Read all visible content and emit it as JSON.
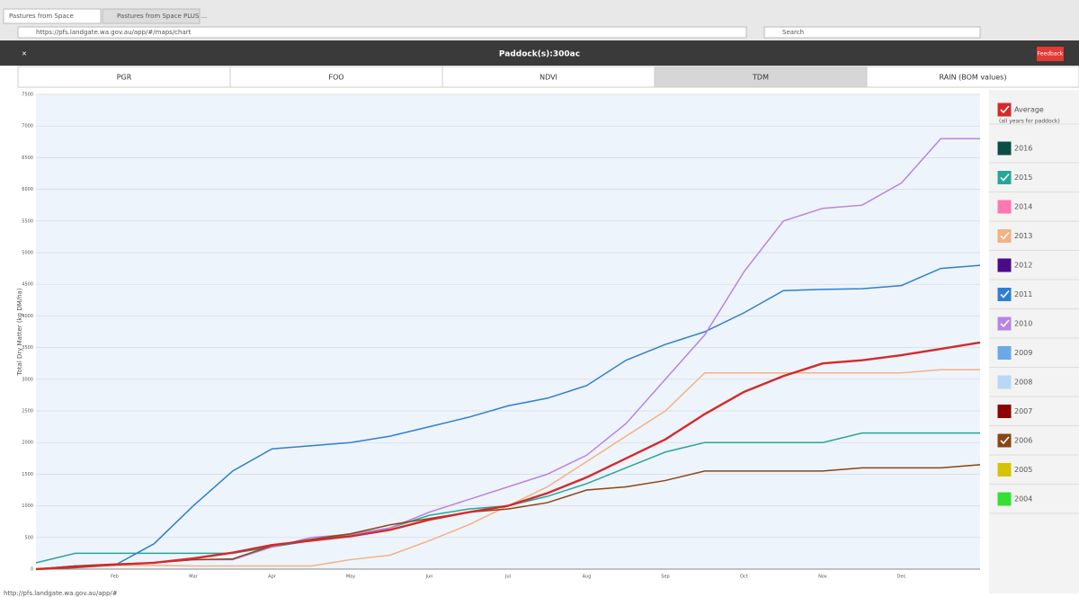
{
  "browser": {
    "tabs": [
      "Pastures from Space",
      "Pastures from Space PLUS ..."
    ],
    "url": "https://pfs.landgate.wa.gov.au/app/#/maps/chart",
    "search": "Search",
    "status": "http://pfs.landgate.wa.gov.au/app/#"
  },
  "header": {
    "title": "Paddock(s):300ac",
    "feedback": "Feedback"
  },
  "tabs": [
    "PGR",
    "FOO",
    "NDVI",
    "TDM",
    "RAIN (BOM values)"
  ],
  "active_tab": 3,
  "chart_data": {
    "type": "line",
    "ylabel": "Total Dry Matter (kg DM/ha)",
    "categories": [
      null,
      null,
      "Feb",
      null,
      "Mar",
      null,
      "Apr",
      null,
      "May",
      null,
      "Jun",
      null,
      "Jul",
      null,
      "Aug",
      null,
      "Sep",
      null,
      "Oct",
      null,
      "Nov",
      null,
      "Dec",
      null,
      null
    ],
    "ylim": [
      0,
      7500
    ],
    "yticks": [
      0,
      500,
      1000,
      1500,
      2000,
      2500,
      3000,
      3500,
      4000,
      4500,
      5000,
      5500,
      6000,
      6500,
      7000,
      7500
    ],
    "grid": true,
    "average_note": "(all years for paddock)",
    "series": [
      {
        "name": "Average",
        "color": "#d42a2a",
        "checked": true,
        "values": [
          0,
          30,
          70,
          100,
          170,
          260,
          380,
          450,
          520,
          620,
          780,
          900,
          1000,
          1200,
          1450,
          1750,
          2050,
          2450,
          2800,
          3050,
          3250,
          3300,
          3380,
          3480,
          3580
        ]
      },
      {
        "name": "2016",
        "color": "#0b4d45",
        "checked": false
      },
      {
        "name": "2015",
        "color": "#26a69a",
        "checked": true,
        "values": [
          100,
          250,
          250,
          250,
          250,
          250,
          350,
          450,
          550,
          650,
          850,
          950,
          1000,
          1150,
          1350,
          1600,
          1850,
          2000,
          2000,
          2000,
          2000,
          2150,
          2150,
          2150,
          2150
        ]
      },
      {
        "name": "2014",
        "color": "#ff77b0",
        "checked": false
      },
      {
        "name": "2013",
        "color": "#f4b183",
        "checked": true,
        "values": [
          0,
          50,
          60,
          60,
          50,
          50,
          50,
          50,
          150,
          220,
          450,
          700,
          1000,
          1300,
          1700,
          2100,
          2500,
          3100,
          3100,
          3100,
          3100,
          3100,
          3100,
          3150,
          3150
        ]
      },
      {
        "name": "2012",
        "color": "#4b0a8a",
        "checked": false
      },
      {
        "name": "2011",
        "color": "#2f7fd0",
        "checked": true,
        "values": [
          0,
          50,
          60,
          400,
          1000,
          1550,
          1900,
          1950,
          2000,
          2100,
          2250,
          2400,
          2580,
          2700,
          2900,
          3300,
          3550,
          3750,
          4050,
          4400,
          4420,
          4430,
          4480,
          4750,
          4800
        ]
      },
      {
        "name": "2010",
        "color": "#b784e6",
        "checked": true,
        "values": [
          0,
          50,
          80,
          100,
          150,
          150,
          350,
          500,
          550,
          650,
          900,
          1100,
          1300,
          1500,
          1800,
          2300,
          3000,
          3700,
          4700,
          5500,
          5700,
          5750,
          6100,
          6800,
          6800
        ]
      },
      {
        "name": "2009",
        "color": "#6aa8e8",
        "checked": false
      },
      {
        "name": "2008",
        "color": "#b8d8f4",
        "checked": false
      },
      {
        "name": "2007",
        "color": "#8b0000",
        "checked": false
      },
      {
        "name": "2006",
        "color": "#8b4513",
        "checked": true,
        "values": [
          0,
          50,
          80,
          100,
          150,
          160,
          370,
          470,
          560,
          700,
          800,
          900,
          950,
          1050,
          1250,
          1300,
          1400,
          1550,
          1550,
          1550,
          1550,
          1600,
          1600,
          1600,
          1650
        ]
      },
      {
        "name": "2005",
        "color": "#d4c400",
        "checked": false
      },
      {
        "name": "2004",
        "color": "#33e033",
        "checked": false
      }
    ]
  }
}
